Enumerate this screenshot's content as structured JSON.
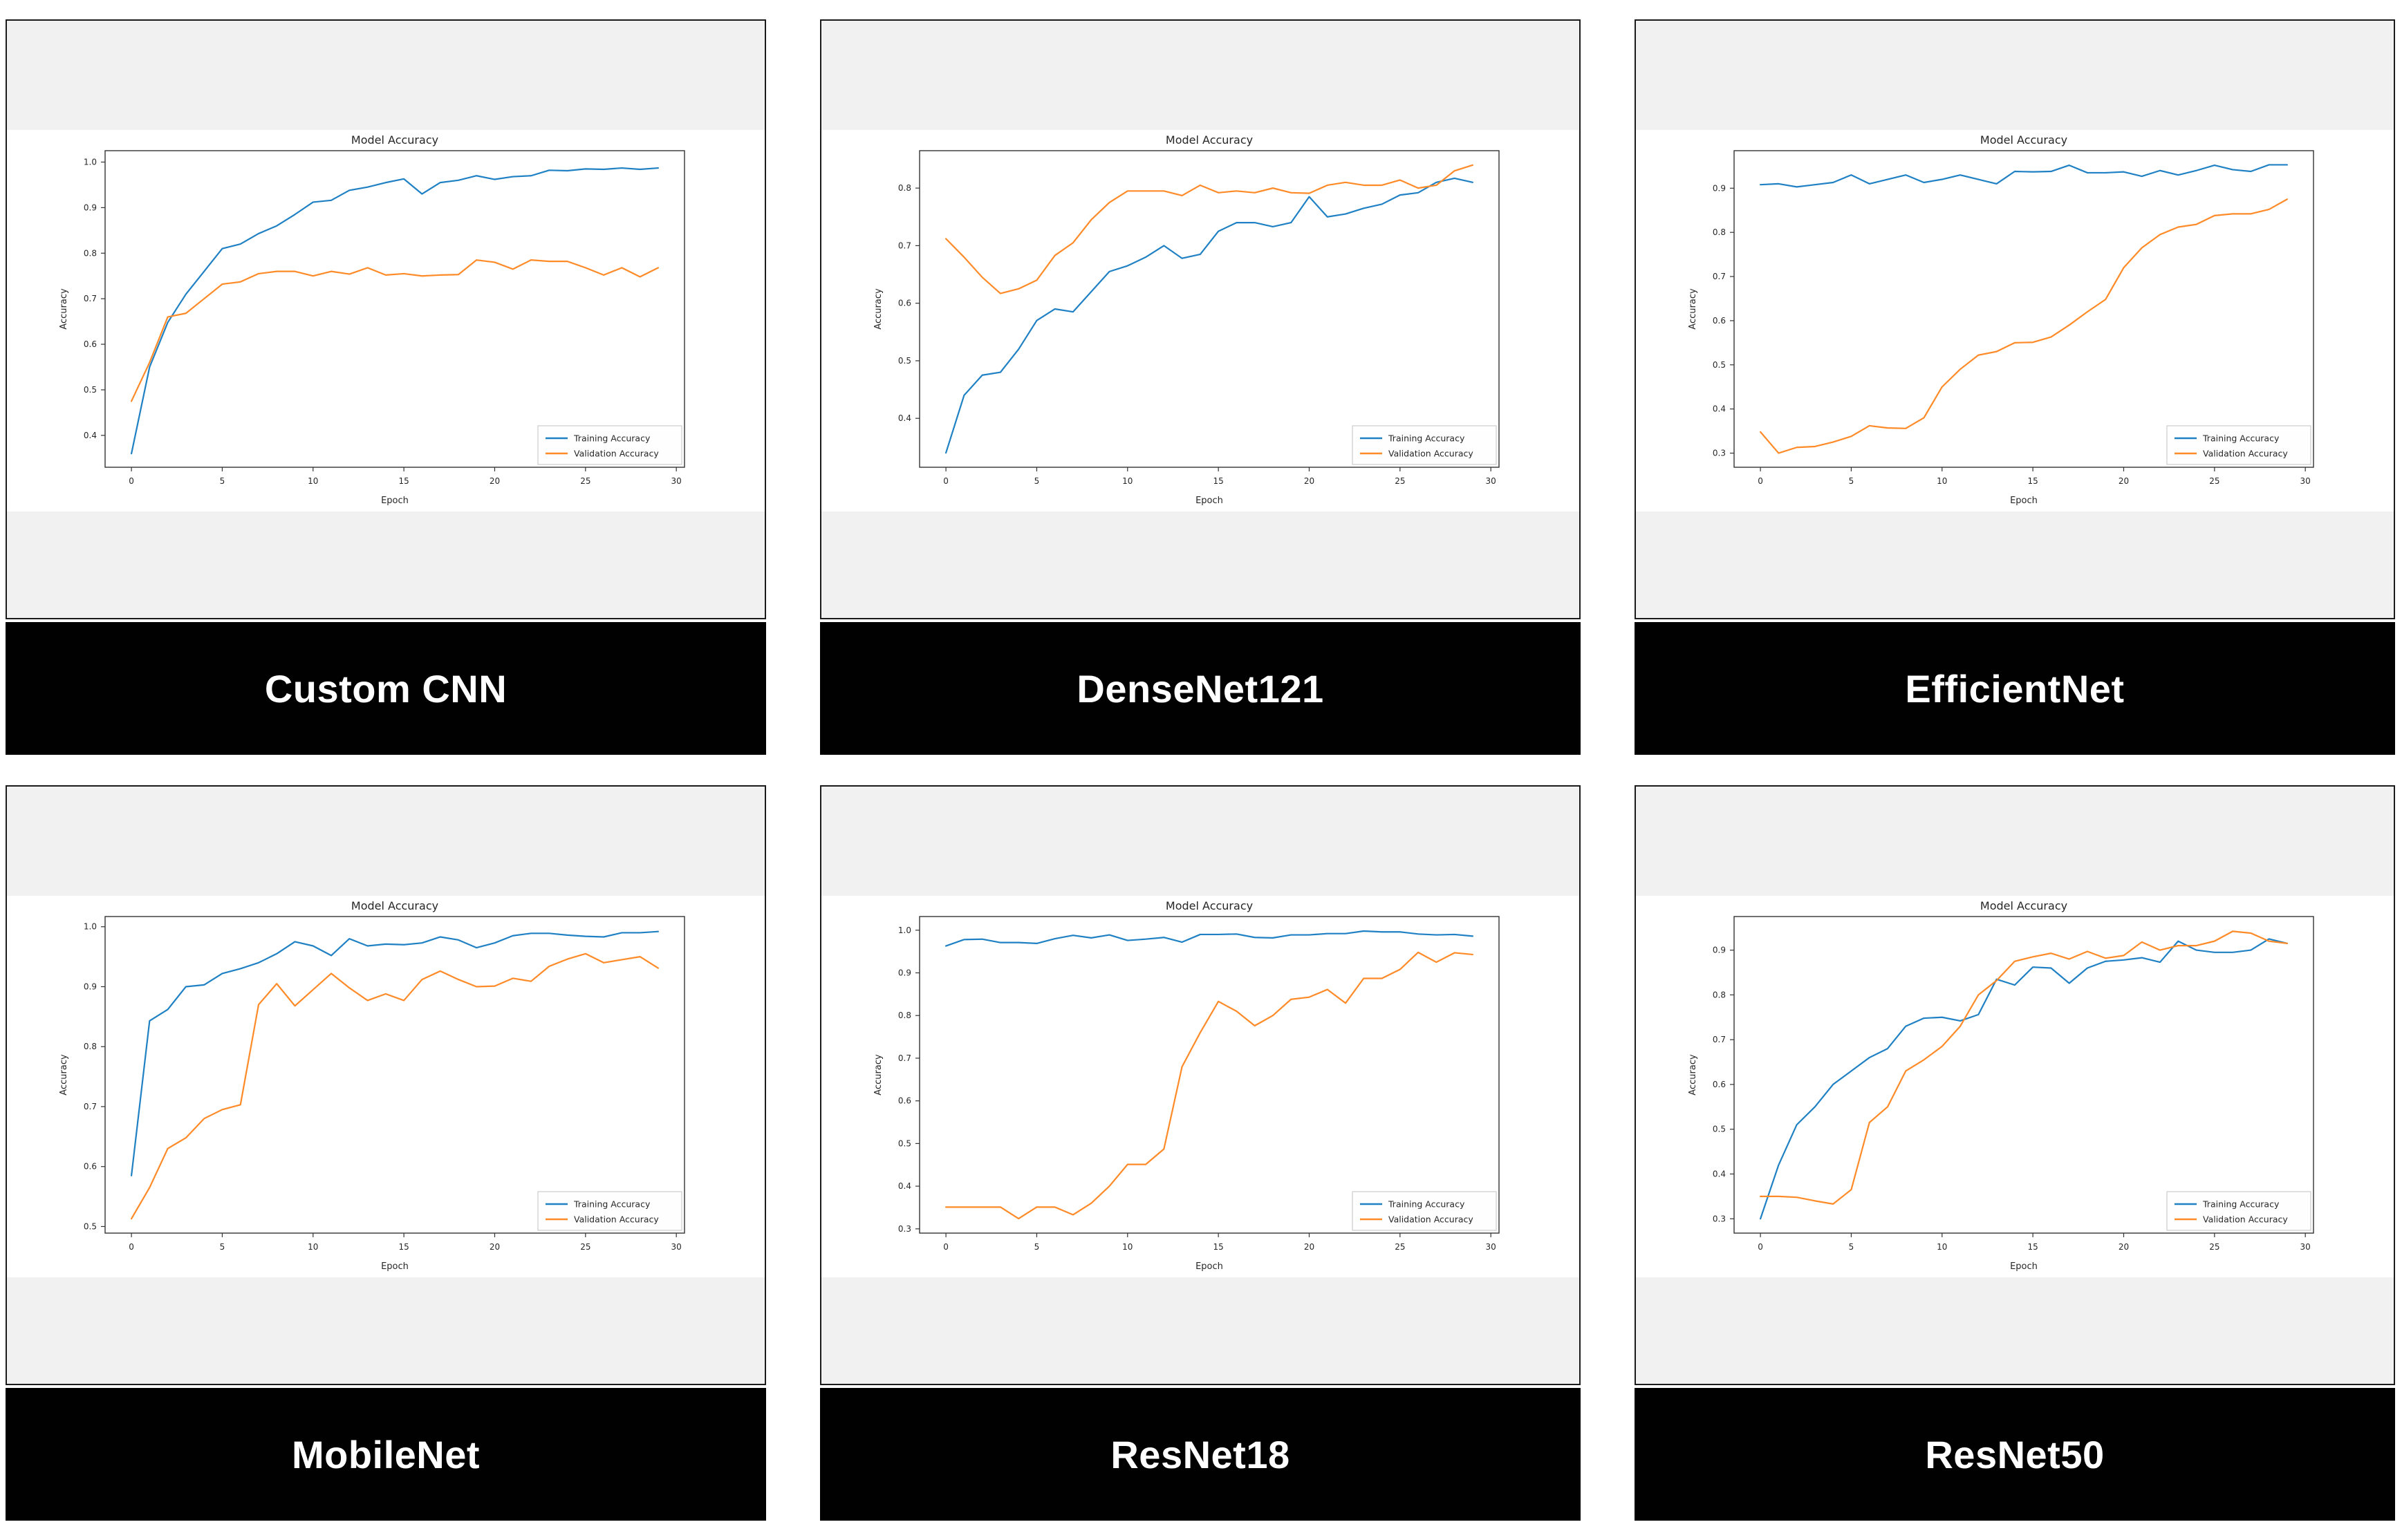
{
  "chart_data": {
    "type": "line",
    "shared": {
      "title": "Model Accuracy",
      "xlabel": "Epoch",
      "ylabel": "Accuracy",
      "x": [
        0,
        1,
        2,
        3,
        4,
        5,
        6,
        7,
        8,
        9,
        10,
        11,
        12,
        13,
        14,
        15,
        16,
        17,
        18,
        19,
        20,
        21,
        22,
        23,
        24,
        25,
        26,
        27,
        28,
        29
      ],
      "xticks": [
        0,
        5,
        10,
        15,
        20,
        25,
        30
      ],
      "xlim": [
        -1.45,
        30.45
      ],
      "grid": false,
      "legend": [
        "Training Accuracy",
        "Validation Accuracy"
      ],
      "legend_position": "lower right",
      "colors": {
        "train": "#1f81c4",
        "val": "#ff8a28"
      }
    },
    "charts": [
      {
        "model": "Custom CNN",
        "ylim": [
          0.33,
          1.025
        ],
        "yticks": [
          0.4,
          0.5,
          0.6,
          0.7,
          0.8,
          0.9,
          1.0
        ],
        "series": [
          {
            "name": "Training Accuracy",
            "values": [
              0.36,
              0.55,
              0.648,
              0.71,
              0.76,
              0.81,
              0.82,
              0.843,
              0.86,
              0.885,
              0.912,
              0.916,
              0.938,
              0.945,
              0.955,
              0.963,
              0.93,
              0.955,
              0.96,
              0.97,
              0.962,
              0.968,
              0.97,
              0.982,
              0.981,
              0.985,
              0.984,
              0.987,
              0.984,
              0.987
            ]
          },
          {
            "name": "Validation Accuracy",
            "values": [
              0.475,
              0.56,
              0.66,
              0.668,
              0.7,
              0.732,
              0.737,
              0.755,
              0.76,
              0.76,
              0.75,
              0.76,
              0.754,
              0.768,
              0.752,
              0.755,
              0.75,
              0.752,
              0.753,
              0.785,
              0.78,
              0.765,
              0.785,
              0.782,
              0.782,
              0.768,
              0.752,
              0.768,
              0.748,
              0.768
            ]
          }
        ]
      },
      {
        "model": "DenseNet121",
        "ylim": [
          0.315,
          0.865
        ],
        "yticks": [
          0.4,
          0.5,
          0.6,
          0.7,
          0.8
        ],
        "series": [
          {
            "name": "Training Accuracy",
            "values": [
              0.34,
              0.44,
              0.475,
              0.48,
              0.52,
              0.57,
              0.59,
              0.585,
              0.62,
              0.655,
              0.665,
              0.68,
              0.7,
              0.678,
              0.685,
              0.725,
              0.74,
              0.74,
              0.733,
              0.74,
              0.785,
              0.75,
              0.755,
              0.765,
              0.772,
              0.788,
              0.792,
              0.81,
              0.817,
              0.81
            ]
          },
          {
            "name": "Validation Accuracy",
            "values": [
              0.712,
              0.68,
              0.645,
              0.617,
              0.625,
              0.64,
              0.683,
              0.705,
              0.745,
              0.775,
              0.795,
              0.795,
              0.795,
              0.787,
              0.805,
              0.792,
              0.795,
              0.792,
              0.8,
              0.792,
              0.791,
              0.805,
              0.81,
              0.805,
              0.805,
              0.814,
              0.8,
              0.805,
              0.83,
              0.84
            ]
          }
        ]
      },
      {
        "model": "EfficientNet",
        "ylim": [
          0.268,
          0.985
        ],
        "yticks": [
          0.3,
          0.4,
          0.5,
          0.6,
          0.7,
          0.8,
          0.9
        ],
        "series": [
          {
            "name": "Training Accuracy",
            "values": [
              0.908,
              0.91,
              0.903,
              0.908,
              0.913,
              0.93,
              0.91,
              0.92,
              0.93,
              0.913,
              0.92,
              0.93,
              0.92,
              0.91,
              0.938,
              0.937,
              0.938,
              0.952,
              0.935,
              0.935,
              0.937,
              0.927,
              0.94,
              0.93,
              0.94,
              0.952,
              0.942,
              0.938,
              0.953,
              0.953
            ]
          },
          {
            "name": "Validation Accuracy",
            "values": [
              0.348,
              0.3,
              0.313,
              0.315,
              0.325,
              0.338,
              0.362,
              0.357,
              0.356,
              0.38,
              0.45,
              0.49,
              0.522,
              0.53,
              0.55,
              0.551,
              0.563,
              0.59,
              0.62,
              0.648,
              0.72,
              0.765,
              0.795,
              0.812,
              0.818,
              0.838,
              0.842,
              0.842,
              0.852,
              0.875
            ]
          }
        ]
      },
      {
        "model": "MobileNet",
        "ylim": [
          0.489,
          1.017
        ],
        "yticks": [
          0.5,
          0.6,
          0.7,
          0.8,
          0.9,
          1.0
        ],
        "series": [
          {
            "name": "Training Accuracy",
            "values": [
              0.585,
              0.843,
              0.862,
              0.9,
              0.903,
              0.922,
              0.93,
              0.94,
              0.955,
              0.975,
              0.968,
              0.952,
              0.98,
              0.968,
              0.971,
              0.97,
              0.973,
              0.983,
              0.978,
              0.965,
              0.973,
              0.985,
              0.989,
              0.989,
              0.986,
              0.984,
              0.983,
              0.99,
              0.99,
              0.992
            ]
          },
          {
            "name": "Validation Accuracy",
            "values": [
              0.513,
              0.565,
              0.63,
              0.648,
              0.68,
              0.695,
              0.703,
              0.87,
              0.905,
              0.868,
              0.895,
              0.922,
              0.898,
              0.877,
              0.888,
              0.877,
              0.912,
              0.926,
              0.912,
              0.9,
              0.901,
              0.914,
              0.909,
              0.934,
              0.946,
              0.955,
              0.94,
              0.945,
              0.95,
              0.931
            ]
          }
        ]
      },
      {
        "model": "ResNet18",
        "ylim": [
          0.29,
          1.032
        ],
        "yticks": [
          0.3,
          0.4,
          0.5,
          0.6,
          0.7,
          0.8,
          0.9,
          1.0
        ],
        "series": [
          {
            "name": "Training Accuracy",
            "values": [
              0.963,
              0.978,
              0.979,
              0.971,
              0.971,
              0.969,
              0.98,
              0.988,
              0.982,
              0.989,
              0.976,
              0.979,
              0.983,
              0.972,
              0.99,
              0.99,
              0.991,
              0.983,
              0.982,
              0.989,
              0.989,
              0.992,
              0.992,
              0.998,
              0.996,
              0.996,
              0.991,
              0.989,
              0.99,
              0.986
            ]
          },
          {
            "name": "Validation Accuracy",
            "values": [
              0.351,
              0.351,
              0.351,
              0.351,
              0.324,
              0.351,
              0.351,
              0.333,
              0.36,
              0.4,
              0.451,
              0.451,
              0.487,
              0.68,
              0.76,
              0.833,
              0.81,
              0.776,
              0.8,
              0.838,
              0.843,
              0.861,
              0.829,
              0.887,
              0.887,
              0.908,
              0.948,
              0.925,
              0.947,
              0.943
            ]
          }
        ]
      },
      {
        "model": "ResNet50",
        "ylim": [
          0.268,
          0.975
        ],
        "yticks": [
          0.3,
          0.4,
          0.5,
          0.6,
          0.7,
          0.8,
          0.9
        ],
        "series": [
          {
            "name": "Training Accuracy",
            "values": [
              0.3,
              0.42,
              0.51,
              0.55,
              0.6,
              0.63,
              0.66,
              0.68,
              0.73,
              0.748,
              0.75,
              0.742,
              0.756,
              0.835,
              0.822,
              0.862,
              0.86,
              0.826,
              0.86,
              0.875,
              0.878,
              0.883,
              0.873,
              0.92,
              0.9,
              0.895,
              0.895,
              0.9,
              0.925,
              0.915
            ]
          },
          {
            "name": "Validation Accuracy",
            "values": [
              0.35,
              0.35,
              0.348,
              0.34,
              0.333,
              0.365,
              0.515,
              0.55,
              0.63,
              0.655,
              0.685,
              0.73,
              0.8,
              0.832,
              0.875,
              0.885,
              0.893,
              0.88,
              0.897,
              0.882,
              0.888,
              0.918,
              0.9,
              0.91,
              0.91,
              0.92,
              0.942,
              0.938,
              0.92,
              0.915
            ]
          }
        ]
      }
    ]
  }
}
